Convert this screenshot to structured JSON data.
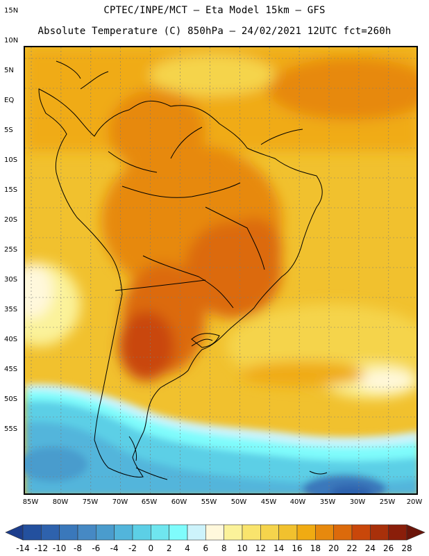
{
  "header": {
    "line1": "CPTEC/INPE/MCT –  Eta Model 15km – GFS",
    "line2": "Absolute Temperature (C) 850hPa – 24/02/2021 12UTC fct=260h"
  },
  "axes": {
    "lat_labels": [
      "15N",
      "10N",
      "5N",
      "EQ",
      "5S",
      "10S",
      "15S",
      "20S",
      "25S",
      "30S",
      "35S",
      "40S",
      "45S",
      "50S",
      "55S"
    ],
    "lon_labels": [
      "85W",
      "80W",
      "75W",
      "70W",
      "65W",
      "60W",
      "55W",
      "50W",
      "45W",
      "40W",
      "35W",
      "30W",
      "25W",
      "20W"
    ]
  },
  "colorbar": {
    "labels": [
      "-14",
      "-12",
      "-10",
      "-8",
      "-6",
      "-4",
      "-2",
      "0",
      "2",
      "4",
      "6",
      "8",
      "10",
      "12",
      "14",
      "16",
      "18",
      "20",
      "22",
      "24",
      "26",
      "28"
    ],
    "colors": [
      "#1c3d8c",
      "#23509e",
      "#2e62ad",
      "#3a78bb",
      "#4689c4",
      "#4a9ccd",
      "#52b5db",
      "#5ccfe6",
      "#6fe6ef",
      "#7ffcfc",
      "#cdf3fb",
      "#fff8dc",
      "#fbf29a",
      "#f9e46d",
      "#f5d44c",
      "#f1c12e",
      "#f0ab12",
      "#e7890d",
      "#dc6a0b",
      "#c9470a",
      "#a8300a",
      "#8a1e0a",
      "#6b150a"
    ]
  }
}
